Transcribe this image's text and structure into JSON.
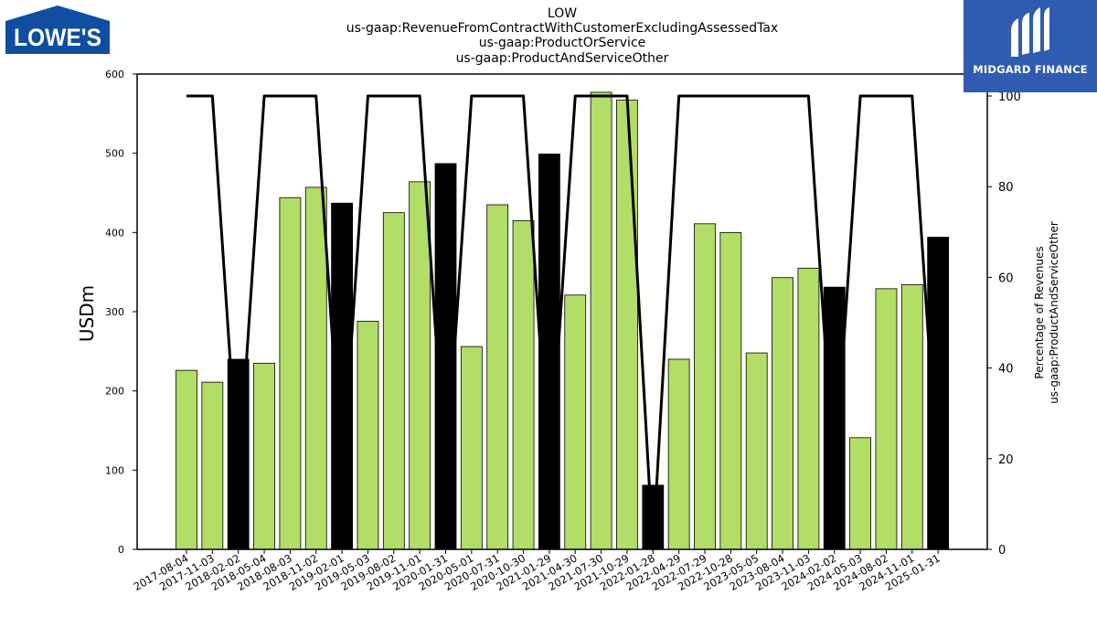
{
  "header": {
    "title_lines": [
      "LOW",
      "us-gaap:RevenueFromContractWithCustomerExcludingAssessedTax",
      "us-gaap:ProductOrService",
      "us-gaap:ProductAndServiceOther"
    ]
  },
  "logos": {
    "left_text": "LOWE'S",
    "right_text": "MIDGARD FINANCE"
  },
  "colors": {
    "quarter_bar": "#b2dd66",
    "year_end_bar": "#000000",
    "line": "#000000",
    "lowes_blue": "#0f4ea0",
    "midgard_blue": "#2f5bb0"
  },
  "chart_data": {
    "type": "bar",
    "ylabel": "USDm",
    "y2label_lines": [
      "Percentage of Revenues",
      "us-gaap:ProductAndServiceOther"
    ],
    "ylim": [
      0,
      600
    ],
    "y_ticks": [
      0,
      100,
      200,
      300,
      400,
      500,
      600
    ],
    "y2lim": [
      0,
      100
    ],
    "y2_ticks": [
      0,
      20,
      40,
      60,
      80,
      100
    ],
    "categories": [
      "2017-08-04",
      "2017-11-03",
      "2018-02-02",
      "2018-05-04",
      "2018-08-03",
      "2018-11-02",
      "2019-02-01",
      "2019-05-03",
      "2019-08-02",
      "2019-11-01",
      "2020-01-31",
      "2020-05-01",
      "2020-07-31",
      "2020-10-30",
      "2021-01-29",
      "2021-04-30",
      "2021-07-30",
      "2021-10-29",
      "2022-01-28",
      "2022-04-29",
      "2022-07-29",
      "2022-10-28",
      "2023-05-05",
      "2023-08-04",
      "2023-11-03",
      "2024-02-02",
      "2024-05-03",
      "2024-08-02",
      "2024-11-01",
      "2025-01-31"
    ],
    "values": [
      226,
      211,
      240,
      235,
      444,
      457,
      437,
      288,
      425,
      464,
      487,
      256,
      435,
      415,
      499,
      321,
      577,
      567,
      81,
      240,
      411,
      400,
      248,
      343,
      355,
      331,
      141,
      329,
      334,
      394
    ],
    "year_end": [
      false,
      false,
      true,
      false,
      false,
      false,
      true,
      false,
      false,
      false,
      true,
      false,
      false,
      false,
      true,
      false,
      false,
      false,
      true,
      false,
      false,
      false,
      false,
      false,
      false,
      true,
      false,
      false,
      false,
      true
    ],
    "percent_series": {
      "values": [
        100,
        100,
        15,
        100,
        100,
        100,
        15,
        100,
        100,
        100,
        15,
        100,
        100,
        100,
        15,
        100,
        100,
        100,
        0,
        100,
        100,
        100,
        100,
        100,
        100,
        15,
        100,
        100,
        100,
        15
      ]
    },
    "grid": false,
    "legend": "none"
  }
}
